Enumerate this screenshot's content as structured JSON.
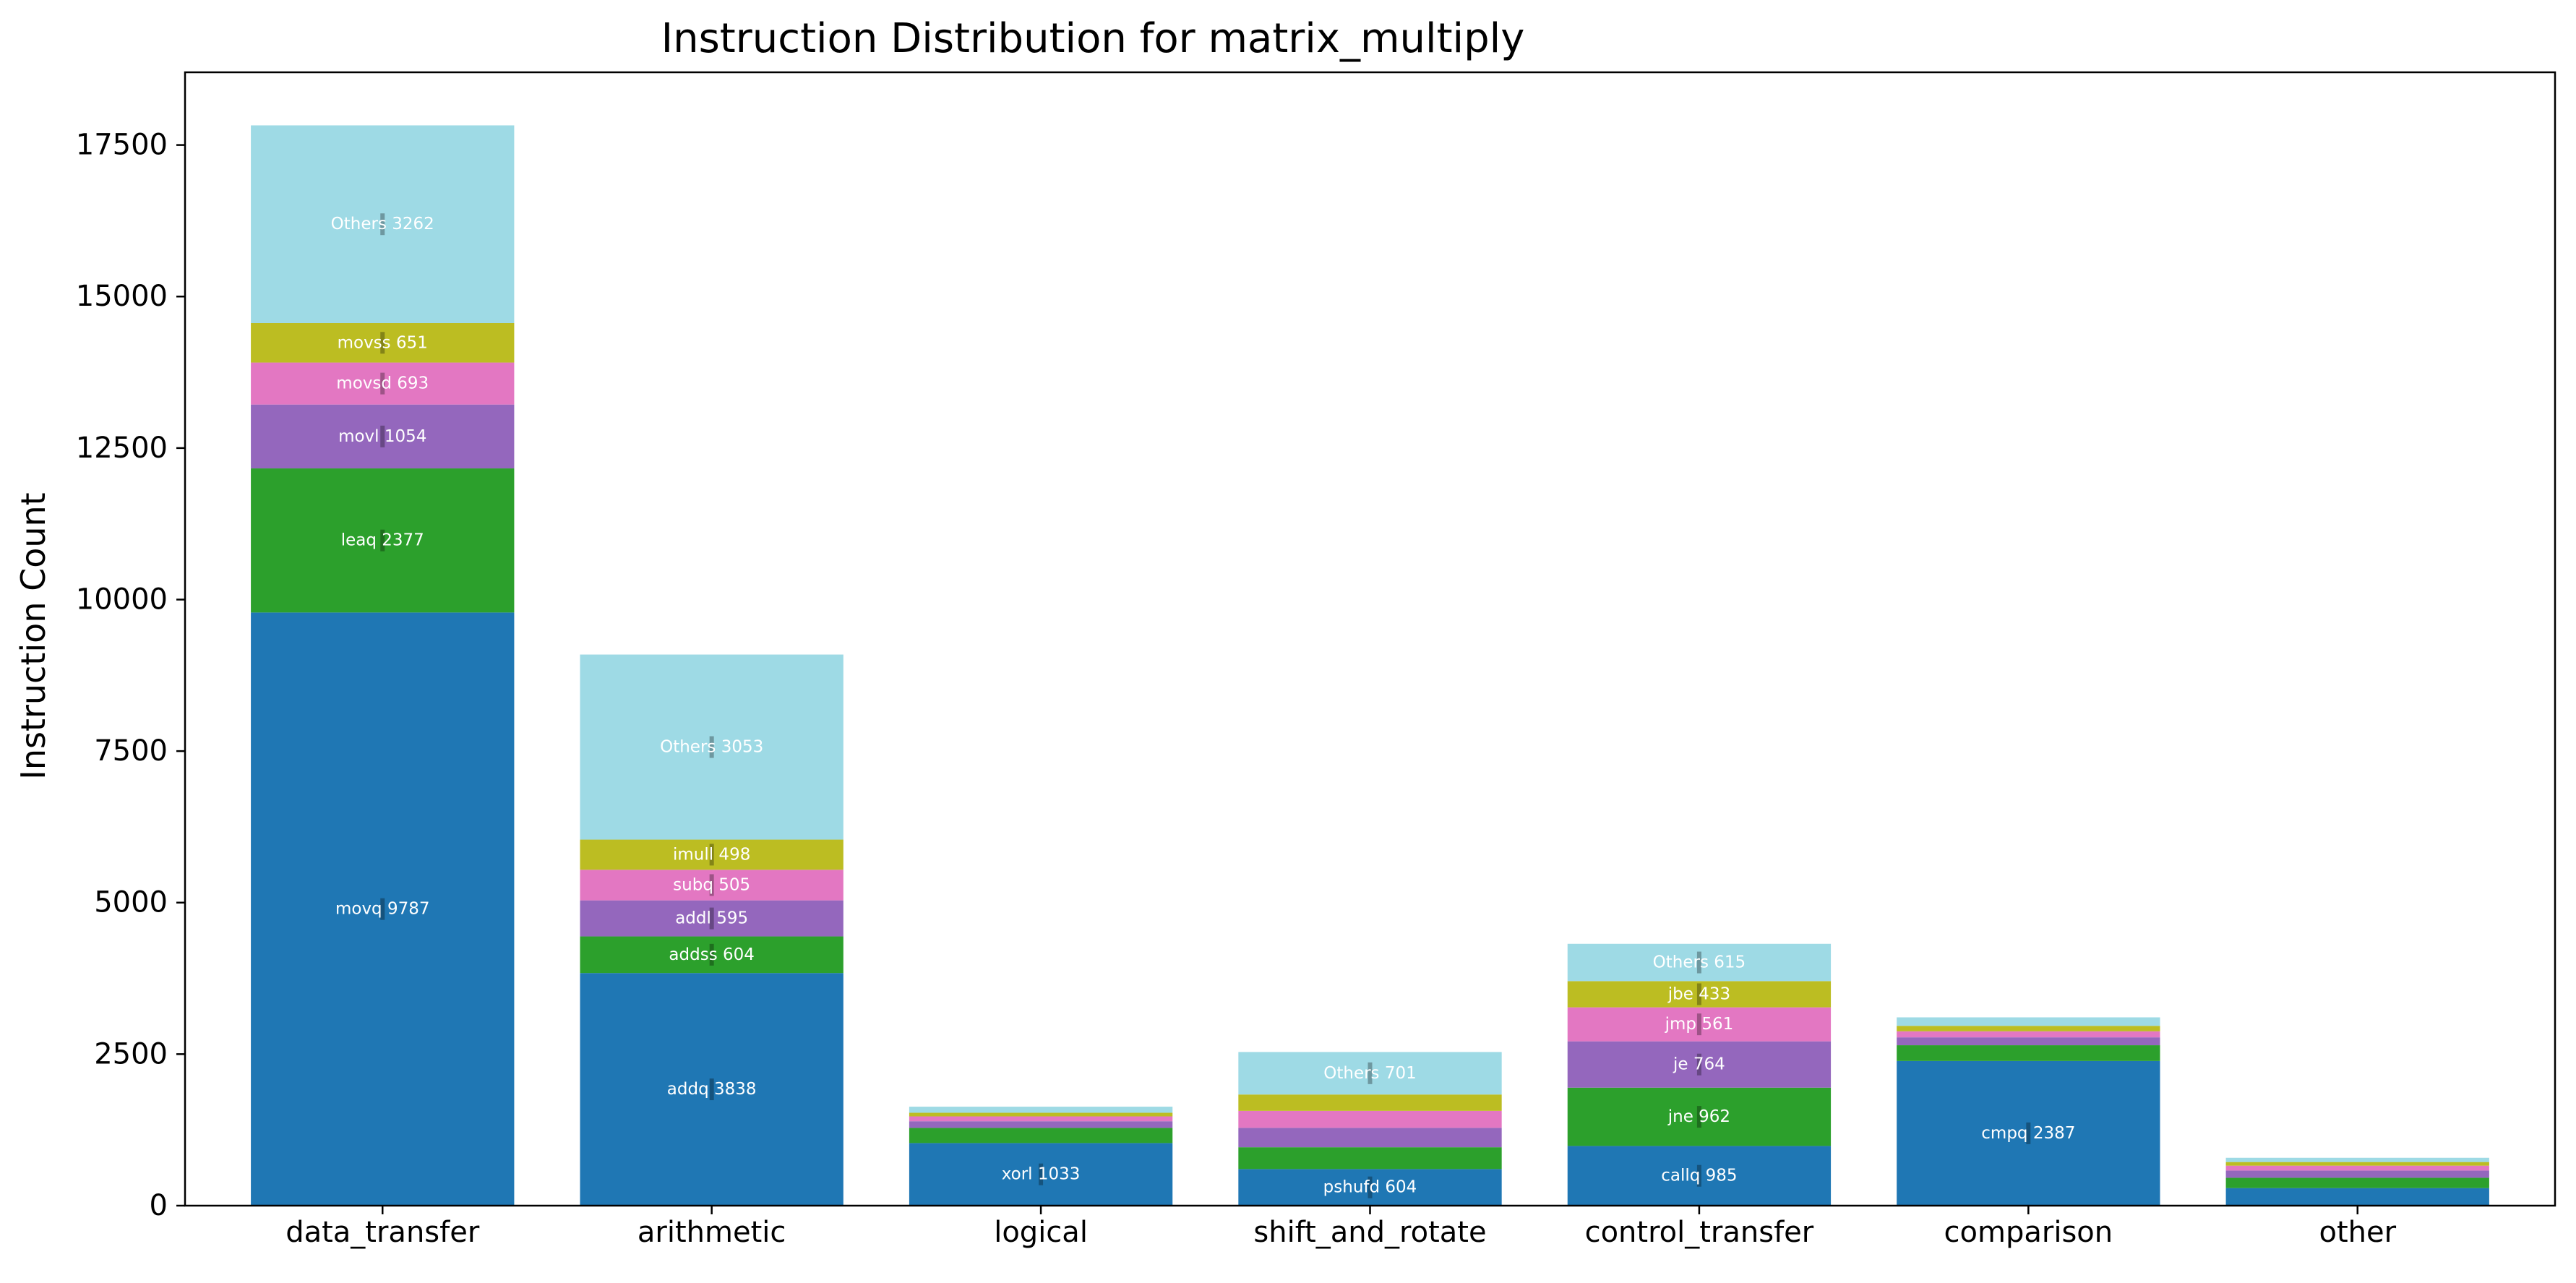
{
  "chart_data": {
    "type": "bar",
    "stacked": true,
    "title": "Instruction Distribution for matrix_multiply",
    "xlabel": "",
    "ylabel": "Instruction Count",
    "categories": [
      "data_transfer",
      "arithmetic",
      "logical",
      "shift_and_rotate",
      "control_transfer",
      "comparison",
      "other"
    ],
    "ylim": [
      0,
      18700
    ],
    "yticks": [
      0,
      2500,
      5000,
      7500,
      10000,
      12500,
      15000,
      17500
    ],
    "grid": false,
    "legend": "none",
    "layer_colors": [
      "#1f77b4",
      "#2ca02c",
      "#9467bd",
      "#e377c2",
      "#bcbd22",
      "#9edae5"
    ],
    "stacks": [
      {
        "category": "data_transfer",
        "segments": [
          {
            "name": "movq",
            "value": 9787,
            "label": "movq 9787"
          },
          {
            "name": "leaq",
            "value": 2377,
            "label": "leaq 2377"
          },
          {
            "name": "movl",
            "value": 1054,
            "label": "movl 1054"
          },
          {
            "name": "movsd",
            "value": 693,
            "label": "movsd 693"
          },
          {
            "name": "movss",
            "value": 651,
            "label": "movss 651"
          },
          {
            "name": "Others",
            "value": 3262,
            "label": "Others 3262"
          }
        ]
      },
      {
        "category": "arithmetic",
        "segments": [
          {
            "name": "addq",
            "value": 3838,
            "label": "addq 3838"
          },
          {
            "name": "addss",
            "value": 604,
            "label": "addss 604"
          },
          {
            "name": "addl",
            "value": 595,
            "label": "addl 595"
          },
          {
            "name": "subq",
            "value": 505,
            "label": "subq 505"
          },
          {
            "name": "imull",
            "value": 498,
            "label": "imull 498"
          },
          {
            "name": "Others",
            "value": 3053,
            "label": "Others 3053"
          }
        ]
      },
      {
        "category": "logical",
        "segments": [
          {
            "name": "xorl",
            "value": 1033,
            "label": "xorl 1033"
          },
          {
            "value": 250
          },
          {
            "value": 110
          },
          {
            "value": 80
          },
          {
            "value": 60
          },
          {
            "value": 100
          }
        ]
      },
      {
        "category": "shift_and_rotate",
        "segments": [
          {
            "name": "pshufd",
            "value": 604,
            "label": "pshufd 604"
          },
          {
            "value": 360
          },
          {
            "value": 320
          },
          {
            "value": 280
          },
          {
            "value": 270
          },
          {
            "name": "Others",
            "value": 701,
            "label": "Others 701"
          }
        ]
      },
      {
        "category": "control_transfer",
        "segments": [
          {
            "name": "callq",
            "value": 985,
            "label": "callq 985"
          },
          {
            "name": "jne",
            "value": 962,
            "label": "jne 962"
          },
          {
            "name": "je",
            "value": 764,
            "label": "je 764"
          },
          {
            "name": "jmp",
            "value": 561,
            "label": "jmp 561"
          },
          {
            "name": "jbe",
            "value": 433,
            "label": "jbe 433"
          },
          {
            "name": "Others",
            "value": 615,
            "label": "Others 615"
          }
        ]
      },
      {
        "category": "comparison",
        "segments": [
          {
            "name": "cmpq",
            "value": 2387,
            "label": "cmpq 2387"
          },
          {
            "value": 260
          },
          {
            "value": 130
          },
          {
            "value": 100
          },
          {
            "value": 90
          },
          {
            "value": 140
          }
        ]
      },
      {
        "category": "other",
        "segments": [
          {
            "value": 290
          },
          {
            "value": 170
          },
          {
            "value": 120
          },
          {
            "value": 80
          },
          {
            "value": 60
          },
          {
            "value": 70
          }
        ]
      }
    ]
  }
}
